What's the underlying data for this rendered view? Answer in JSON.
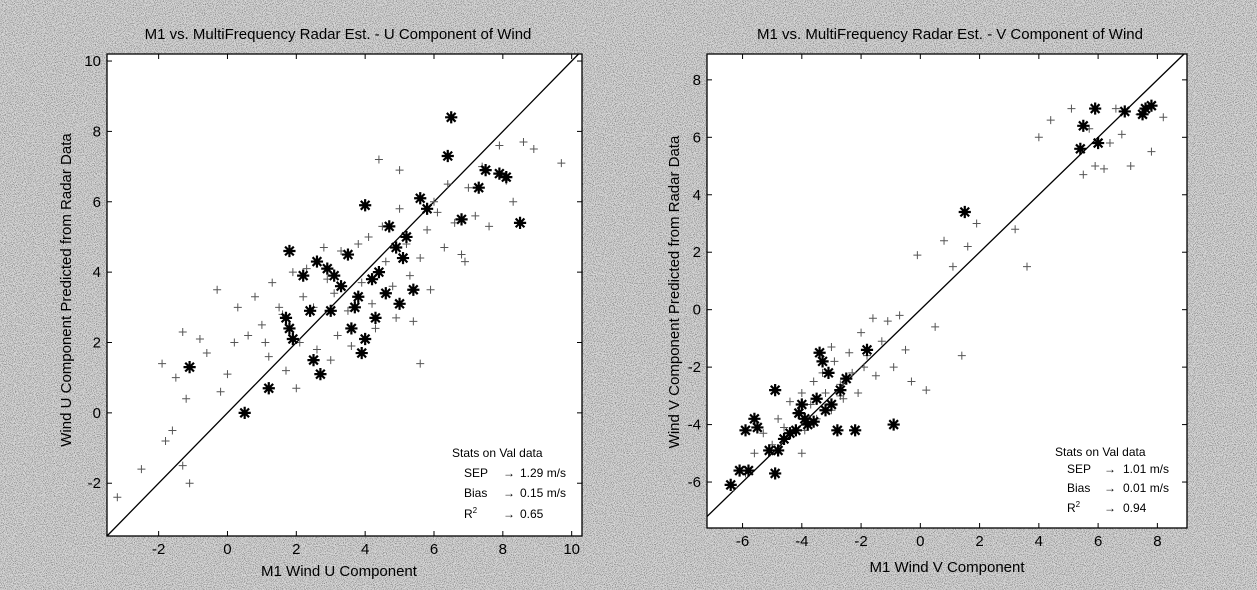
{
  "chart_data": [
    {
      "type": "scatter",
      "title": "M1 vs. MultiFrequency Radar Est. - U Component of Wind",
      "xlabel": "M1 Wind U Component",
      "ylabel": "Wind U Component Predicted from Radar Data",
      "xlim": [
        -3.5,
        10.3
      ],
      "ylim": [
        -3.5,
        10.2
      ],
      "xticks": [
        -2,
        0,
        2,
        4,
        6,
        8,
        10
      ],
      "yticks": [
        -2,
        0,
        2,
        4,
        6,
        8,
        10
      ],
      "reference_line": "y = x",
      "stats": {
        "heading": "Stats on Val data",
        "rows": [
          {
            "label": "SEP",
            "arrow": "→",
            "value": "1.29 m/s"
          },
          {
            "label": "Bias",
            "arrow": "→",
            "value": "0.15 m/s"
          },
          {
            "label": "R",
            "sup": "2",
            "arrow": "→",
            "value": "0.65"
          }
        ]
      },
      "series": [
        {
          "marker": "plus",
          "points": [
            [
              -3.2,
              -2.4
            ],
            [
              -2.5,
              -1.6
            ],
            [
              -1.8,
              -0.8
            ],
            [
              -1.6,
              -0.5
            ],
            [
              -1.3,
              -1.5
            ],
            [
              -1.1,
              -2.0
            ],
            [
              -1.9,
              1.4
            ],
            [
              -1.5,
              1.0
            ],
            [
              -1.3,
              2.3
            ],
            [
              -0.8,
              2.1
            ],
            [
              -1.2,
              0.4
            ],
            [
              -0.6,
              1.7
            ],
            [
              -0.2,
              0.6
            ],
            [
              0.0,
              1.1
            ],
            [
              0.2,
              2.0
            ],
            [
              0.3,
              3.0
            ],
            [
              0.6,
              2.2
            ],
            [
              -0.3,
              3.5
            ],
            [
              0.8,
              3.3
            ],
            [
              1.0,
              2.5
            ],
            [
              1.1,
              2.0
            ],
            [
              1.2,
              1.6
            ],
            [
              1.3,
              3.7
            ],
            [
              1.5,
              3.0
            ],
            [
              1.6,
              2.8
            ],
            [
              1.7,
              1.2
            ],
            [
              1.9,
              4.0
            ],
            [
              2.1,
              2.0
            ],
            [
              2.2,
              3.3
            ],
            [
              2.3,
              4.1
            ],
            [
              2.5,
              3.0
            ],
            [
              2.6,
              1.8
            ],
            [
              2.8,
              4.7
            ],
            [
              2.9,
              3.8
            ],
            [
              3.1,
              3.4
            ],
            [
              3.2,
              2.2
            ],
            [
              3.3,
              4.6
            ],
            [
              3.5,
              2.9
            ],
            [
              3.6,
              1.9
            ],
            [
              3.8,
              4.8
            ],
            [
              3.9,
              3.7
            ],
            [
              4.1,
              5.0
            ],
            [
              4.2,
              3.1
            ],
            [
              4.3,
              2.4
            ],
            [
              4.5,
              5.3
            ],
            [
              4.6,
              4.3
            ],
            [
              4.8,
              3.6
            ],
            [
              4.9,
              2.7
            ],
            [
              5.0,
              5.8
            ],
            [
              5.2,
              4.8
            ],
            [
              5.3,
              3.9
            ],
            [
              5.4,
              2.6
            ],
            [
              5.6,
              4.4
            ],
            [
              5.8,
              5.2
            ],
            [
              5.9,
              3.5
            ],
            [
              6.0,
              6.0
            ],
            [
              6.1,
              5.7
            ],
            [
              6.3,
              4.7
            ],
            [
              6.4,
              6.5
            ],
            [
              6.6,
              5.4
            ],
            [
              6.8,
              4.5
            ],
            [
              7.0,
              6.4
            ],
            [
              7.2,
              5.6
            ],
            [
              7.4,
              7.0
            ],
            [
              7.6,
              5.3
            ],
            [
              7.9,
              7.6
            ],
            [
              8.1,
              6.6
            ],
            [
              8.3,
              6.0
            ],
            [
              8.6,
              7.7
            ],
            [
              8.9,
              7.5
            ],
            [
              9.7,
              7.1
            ],
            [
              4.4,
              7.2
            ],
            [
              5.0,
              6.9
            ],
            [
              3.0,
              1.5
            ],
            [
              2.0,
              0.7
            ],
            [
              5.6,
              1.4
            ],
            [
              6.9,
              4.3
            ]
          ]
        },
        {
          "marker": "star",
          "points": [
            [
              -1.1,
              1.3
            ],
            [
              0.5,
              0.0
            ],
            [
              1.2,
              0.7
            ],
            [
              1.7,
              2.7
            ],
            [
              1.8,
              2.4
            ],
            [
              1.9,
              2.1
            ],
            [
              1.8,
              4.6
            ],
            [
              2.2,
              3.9
            ],
            [
              2.4,
              2.9
            ],
            [
              2.5,
              1.5
            ],
            [
              2.6,
              4.3
            ],
            [
              2.7,
              1.1
            ],
            [
              2.9,
              4.1
            ],
            [
              3.0,
              2.9
            ],
            [
              3.1,
              3.9
            ],
            [
              3.3,
              3.6
            ],
            [
              3.5,
              4.5
            ],
            [
              3.6,
              2.4
            ],
            [
              3.7,
              3.0
            ],
            [
              3.8,
              3.3
            ],
            [
              3.9,
              1.7
            ],
            [
              4.0,
              2.1
            ],
            [
              4.0,
              5.9
            ],
            [
              4.2,
              3.8
            ],
            [
              4.3,
              2.7
            ],
            [
              4.4,
              4.0
            ],
            [
              4.6,
              3.4
            ],
            [
              4.7,
              5.3
            ],
            [
              4.9,
              4.7
            ],
            [
              5.0,
              3.1
            ],
            [
              5.1,
              4.4
            ],
            [
              5.2,
              5.0
            ],
            [
              5.4,
              3.5
            ],
            [
              5.6,
              6.1
            ],
            [
              5.8,
              5.8
            ],
            [
              6.4,
              7.3
            ],
            [
              6.5,
              8.4
            ],
            [
              6.8,
              5.5
            ],
            [
              7.3,
              6.4
            ],
            [
              7.5,
              6.9
            ],
            [
              7.9,
              6.8
            ],
            [
              8.1,
              6.7
            ],
            [
              8.5,
              5.4
            ]
          ]
        }
      ]
    },
    {
      "type": "scatter",
      "title": "M1 vs. MultiFrequency Radar Est. - V Component of Wind",
      "xlabel": "M1 Wind V Component",
      "ylabel": "Wind V Component Predicted from Radar Data",
      "xlim": [
        -7.2,
        9.0
      ],
      "ylim": [
        -7.6,
        8.9
      ],
      "xticks": [
        -6,
        -4,
        -2,
        0,
        2,
        4,
        6,
        8
      ],
      "yticks": [
        -6,
        -4,
        -2,
        0,
        2,
        4,
        6,
        8
      ],
      "reference_line": "y = x",
      "stats": {
        "heading": "Stats on Val data",
        "rows": [
          {
            "label": "SEP",
            "arrow": "→",
            "value": "1.01 m/s"
          },
          {
            "label": "Bias",
            "arrow": "→",
            "value": "0.01 m/s"
          },
          {
            "label": "R",
            "sup": "2",
            "arrow": "→",
            "value": "0.94"
          }
        ]
      },
      "series": [
        {
          "marker": "plus",
          "points": [
            [
              -6.3,
              -6.2
            ],
            [
              -5.9,
              -5.7
            ],
            [
              -5.6,
              -5.0
            ],
            [
              -5.3,
              -4.3
            ],
            [
              -5.0,
              -4.7
            ],
            [
              -4.8,
              -3.8
            ],
            [
              -4.6,
              -4.1
            ],
            [
              -4.4,
              -3.2
            ],
            [
              -4.2,
              -3.6
            ],
            [
              -4.0,
              -2.9
            ],
            [
              -3.9,
              -4.2
            ],
            [
              -3.7,
              -3.3
            ],
            [
              -3.6,
              -2.5
            ],
            [
              -3.5,
              -3.8
            ],
            [
              -3.3,
              -2.2
            ],
            [
              -3.2,
              -2.9
            ],
            [
              -3.0,
              -3.5
            ],
            [
              -2.9,
              -1.8
            ],
            [
              -2.7,
              -2.6
            ],
            [
              -2.6,
              -3.1
            ],
            [
              -2.4,
              -1.5
            ],
            [
              -2.3,
              -2.2
            ],
            [
              -2.1,
              -2.9
            ],
            [
              -2.0,
              -0.8
            ],
            [
              -1.8,
              -1.6
            ],
            [
              -1.6,
              -0.3
            ],
            [
              -1.5,
              -2.3
            ],
            [
              -1.3,
              -1.1
            ],
            [
              -1.1,
              -0.4
            ],
            [
              -0.9,
              -2.0
            ],
            [
              -0.7,
              -0.2
            ],
            [
              -0.5,
              -1.4
            ],
            [
              -0.3,
              -2.5
            ],
            [
              -0.1,
              1.9
            ],
            [
              0.2,
              -2.8
            ],
            [
              0.5,
              -0.6
            ],
            [
              0.8,
              2.4
            ],
            [
              1.1,
              1.5
            ],
            [
              1.4,
              -1.6
            ],
            [
              1.6,
              2.2
            ],
            [
              1.9,
              3.0
            ],
            [
              3.2,
              2.8
            ],
            [
              3.6,
              1.5
            ],
            [
              4.0,
              6.0
            ],
            [
              4.4,
              6.6
            ],
            [
              5.1,
              7.0
            ],
            [
              5.5,
              4.7
            ],
            [
              5.7,
              6.3
            ],
            [
              5.9,
              5.0
            ],
            [
              6.2,
              4.9
            ],
            [
              6.4,
              5.8
            ],
            [
              6.6,
              7.0
            ],
            [
              6.8,
              6.1
            ],
            [
              7.1,
              5.0
            ],
            [
              7.4,
              6.8
            ],
            [
              7.8,
              5.5
            ],
            [
              8.2,
              6.7
            ],
            [
              -3.0,
              -1.3
            ],
            [
              -2.7,
              -3.0
            ],
            [
              -1.9,
              -2.0
            ],
            [
              -4.0,
              -5.0
            ]
          ]
        },
        {
          "marker": "star",
          "points": [
            [
              -6.4,
              -6.1
            ],
            [
              -6.1,
              -5.6
            ],
            [
              -5.8,
              -5.6
            ],
            [
              -5.9,
              -4.2
            ],
            [
              -5.5,
              -4.1
            ],
            [
              -5.6,
              -3.8
            ],
            [
              -5.1,
              -4.9
            ],
            [
              -4.9,
              -5.7
            ],
            [
              -4.8,
              -4.9
            ],
            [
              -4.9,
              -2.8
            ],
            [
              -4.6,
              -4.5
            ],
            [
              -4.4,
              -4.3
            ],
            [
              -4.2,
              -4.2
            ],
            [
              -4.1,
              -3.6
            ],
            [
              -4.0,
              -3.3
            ],
            [
              -3.9,
              -3.8
            ],
            [
              -3.8,
              -4.0
            ],
            [
              -3.6,
              -3.9
            ],
            [
              -3.5,
              -3.1
            ],
            [
              -3.4,
              -1.5
            ],
            [
              -3.3,
              -1.8
            ],
            [
              -3.2,
              -3.5
            ],
            [
              -3.1,
              -2.2
            ],
            [
              -3.0,
              -3.3
            ],
            [
              -2.8,
              -4.2
            ],
            [
              -2.7,
              -2.8
            ],
            [
              -2.5,
              -2.4
            ],
            [
              -2.2,
              -4.2
            ],
            [
              -1.8,
              -1.4
            ],
            [
              -0.9,
              -4.0
            ],
            [
              1.5,
              3.4
            ],
            [
              5.4,
              5.6
            ],
            [
              5.5,
              6.4
            ],
            [
              5.9,
              7.0
            ],
            [
              6.0,
              5.8
            ],
            [
              6.9,
              6.9
            ],
            [
              7.5,
              6.8
            ],
            [
              7.6,
              7.0
            ],
            [
              7.8,
              7.1
            ]
          ]
        }
      ]
    }
  ]
}
